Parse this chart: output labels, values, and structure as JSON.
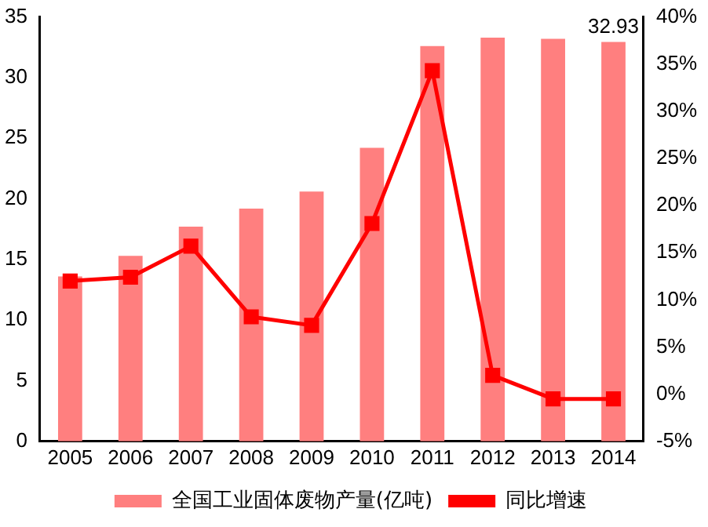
{
  "chart_data": {
    "type": "bar",
    "categories": [
      "2005",
      "2006",
      "2007",
      "2008",
      "2009",
      "2010",
      "2011",
      "2012",
      "2013",
      "2014"
    ],
    "series": [
      {
        "name": "全国工业固体废物产量(亿吨)",
        "color": "#ff7f7f",
        "values": [
          13.6,
          15.3,
          17.7,
          19.2,
          20.6,
          24.2,
          32.6,
          33.3,
          33.2,
          32.93
        ],
        "value_labels": [
          null,
          null,
          null,
          null,
          null,
          null,
          null,
          null,
          null,
          "32.93"
        ]
      },
      {
        "name": "同比增速",
        "type": "line",
        "axis": "y2",
        "color": "#ff0000",
        "marker": "square",
        "values": [
          12.0,
          12.4,
          15.7,
          8.2,
          7.3,
          18.1,
          34.3,
          2.0,
          -0.5,
          -0.5
        ]
      }
    ],
    "ylim": [
      0,
      35
    ],
    "yticks": [
      0,
      5,
      10,
      15,
      20,
      25,
      30,
      35
    ],
    "y2lim": [
      -5,
      40
    ],
    "y2ticks": [
      {
        "value": -5,
        "label": "-5%"
      },
      {
        "value": 0,
        "label": "0%"
      },
      {
        "value": 5,
        "label": "5%"
      },
      {
        "value": 10,
        "label": "10%"
      },
      {
        "value": 15,
        "label": "15%"
      },
      {
        "value": 20,
        "label": "20%"
      },
      {
        "value": 25,
        "label": "25%"
      },
      {
        "value": 30,
        "label": "30%"
      },
      {
        "value": 35,
        "label": "35%"
      },
      {
        "value": 40,
        "label": "40%"
      }
    ],
    "grid": false,
    "legend": "bottom"
  }
}
